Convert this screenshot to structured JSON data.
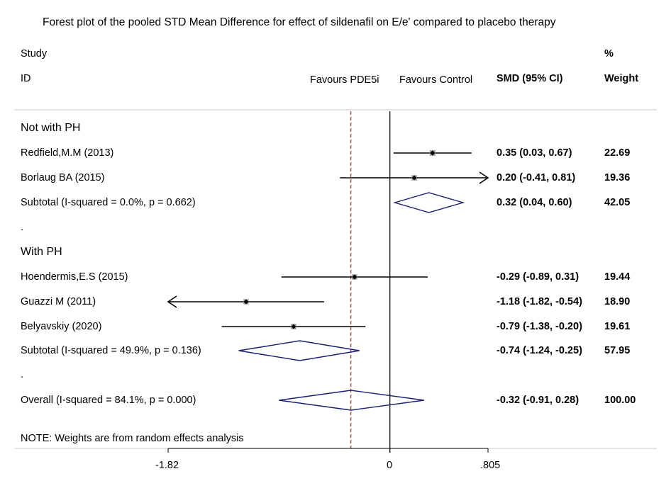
{
  "title": "Forest plot of the pooled STD Mean Difference for effect of sildenafil on E/e' compared to placebo therapy",
  "headers": {
    "study_line1": "Study",
    "study_line2": "ID",
    "favours_left": "Favours PDE5i",
    "favours_right": "Favours Control",
    "smd": "SMD (95% CI)",
    "weight_line1": "%",
    "weight_line2": "Weight"
  },
  "note": "NOTE: Weights are from random effects analysis",
  "groups": [
    {
      "label": "Not with PH"
    },
    {
      "label": "With PH"
    }
  ],
  "spacers": [
    "."
  ],
  "colors": {
    "line": "#000000",
    "diamond": "#1a1f6e",
    "reference": "#9b2a2a",
    "box": "#a0a0a0"
  },
  "chart_data": {
    "type": "forest",
    "xlim": [
      -1.82,
      0.805
    ],
    "xticks": [
      "-1.82",
      "0",
      ".805"
    ],
    "null_line": 0,
    "overall_reference_line": -0.32,
    "rows": [
      {
        "kind": "study",
        "label": "Redfield,M.M (2013)",
        "smd": 0.35,
        "lo": 0.03,
        "hi": 0.67,
        "ci_text": "0.35 (0.03, 0.67)",
        "weight": "22.69"
      },
      {
        "kind": "study",
        "label": "Borlaug BA (2015)",
        "smd": 0.2,
        "lo": -0.41,
        "hi": 0.81,
        "ci_text": "0.20 (-0.41, 0.81)",
        "weight": "19.36"
      },
      {
        "kind": "subtotal",
        "label": "Subtotal  (I-squared = 0.0%, p = 0.662)",
        "smd": 0.32,
        "lo": 0.04,
        "hi": 0.6,
        "ci_text": "0.32 (0.04, 0.60)",
        "weight": "42.05"
      },
      {
        "kind": "study",
        "label": "Hoendermis,E.S (2015)",
        "smd": -0.29,
        "lo": -0.89,
        "hi": 0.31,
        "ci_text": "-0.29 (-0.89, 0.31)",
        "weight": "19.44"
      },
      {
        "kind": "study",
        "label": "Guazzi M (2011)",
        "smd": -1.18,
        "lo": -1.82,
        "hi": -0.54,
        "ci_text": "-1.18 (-1.82, -0.54)",
        "weight": "18.90"
      },
      {
        "kind": "study",
        "label": "Belyavskiy (2020)",
        "smd": -0.79,
        "lo": -1.38,
        "hi": -0.2,
        "ci_text": "-0.79 (-1.38, -0.20)",
        "weight": "19.61"
      },
      {
        "kind": "subtotal",
        "label": "Subtotal  (I-squared = 49.9%, p = 0.136)",
        "smd": -0.74,
        "lo": -1.24,
        "hi": -0.25,
        "ci_text": "-0.74 (-1.24, -0.25)",
        "weight": "57.95"
      },
      {
        "kind": "overall",
        "label": "Overall  (I-squared = 84.1%, p = 0.000)",
        "smd": -0.32,
        "lo": -0.91,
        "hi": 0.28,
        "ci_text": "-0.32 (-0.91, 0.28)",
        "weight": "100.00"
      }
    ]
  }
}
